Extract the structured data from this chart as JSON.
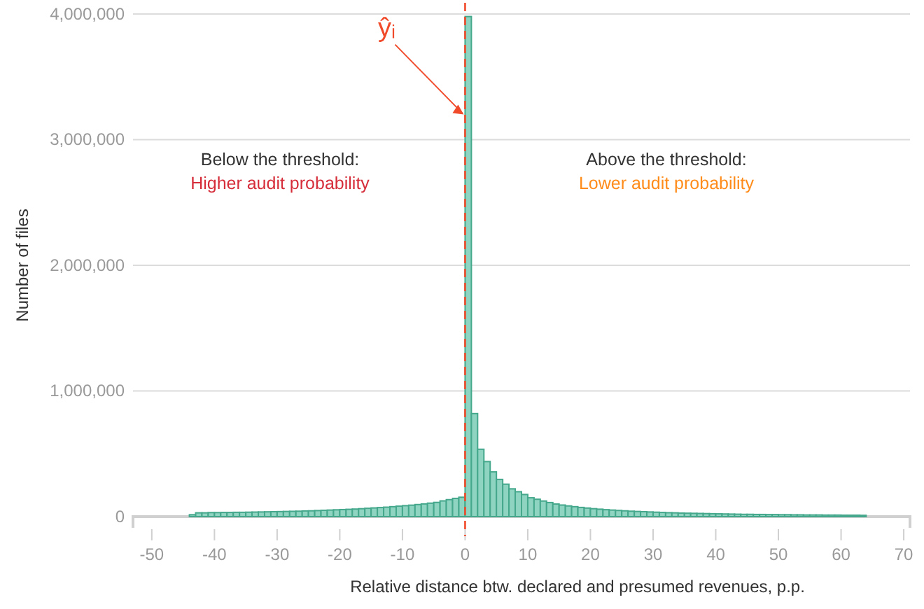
{
  "chart_data": {
    "type": "histogram",
    "xlabel": "Relative distance btw. declared and presumed revenues, p.p.",
    "ylabel": "Number of files",
    "color": "#8fd3c1",
    "bins": [
      -44,
      -43,
      -42,
      -41,
      -40,
      -39,
      -38,
      -37,
      -36,
      -35,
      -34,
      -33,
      -32,
      -31,
      -30,
      -29,
      -28,
      -27,
      -26,
      -25,
      -24,
      -23,
      -22,
      -21,
      -20,
      -19,
      -18,
      -17,
      -16,
      -15,
      -14,
      -13,
      -12,
      -11,
      -10,
      -9,
      -8,
      -7,
      -6,
      -5,
      -4,
      -3,
      -2,
      -1,
      0,
      1,
      2,
      3,
      4,
      5,
      6,
      7,
      8,
      9,
      10,
      11,
      12,
      13,
      14,
      15,
      16,
      17,
      18,
      19,
      20,
      21,
      22,
      23,
      24,
      25,
      26,
      27,
      28,
      29,
      30,
      31,
      32,
      33,
      34,
      35,
      36,
      37,
      38,
      39,
      40,
      41,
      42,
      43,
      44,
      45,
      46,
      47,
      48,
      49,
      50,
      51,
      52,
      53,
      54,
      55,
      56,
      57,
      58,
      59,
      60,
      61,
      62,
      63,
      64
    ],
    "values": [
      15000,
      30000,
      30000,
      32000,
      32000,
      33000,
      33000,
      34000,
      34000,
      35000,
      36000,
      37000,
      38000,
      39000,
      40000,
      41000,
      42000,
      43000,
      45000,
      46000,
      48000,
      50000,
      52000,
      54000,
      56000,
      58000,
      60000,
      63000,
      66000,
      69000,
      72000,
      75000,
      79000,
      83000,
      87000,
      91000,
      96000,
      101000,
      107000,
      113000,
      125000,
      135000,
      145000,
      154000,
      3980000,
      820000,
      536000,
      438000,
      356000,
      296000,
      258000,
      221000,
      198000,
      176000,
      150000,
      138000,
      124000,
      112000,
      100000,
      92000,
      85000,
      79000,
      73000,
      68000,
      63000,
      59000,
      55000,
      52000,
      49000,
      46000,
      43000,
      41000,
      39000,
      37000,
      35000,
      33000,
      31000,
      30000,
      28000,
      27000,
      26000,
      25000,
      24000,
      23000,
      22000,
      21000,
      20000,
      19000,
      18000,
      18000,
      17000,
      17000,
      16000,
      16000,
      15000,
      15000,
      14000,
      14000,
      13000,
      13000,
      13000,
      12000,
      12000,
      12000,
      11000,
      11000,
      11000,
      10000
    ],
    "xlim": [
      -53,
      71
    ],
    "xticks": [
      -50,
      -40,
      -30,
      -20,
      -10,
      0,
      10,
      20,
      30,
      40,
      50,
      60,
      70
    ],
    "ylim": [
      0,
      4000000
    ],
    "yticks": [
      0,
      {
        "value": 1000000,
        "label": "1,000,000"
      },
      {
        "value": 2000000,
        "label": "2,000,000"
      },
      {
        "value": 3000000,
        "label": "3,000,000"
      },
      {
        "value": 4000000,
        "label": "4,000,000"
      }
    ],
    "grid": "y",
    "ref_lines": [
      {
        "axis": "x",
        "value": 0,
        "label": null,
        "color": "#f04a2a",
        "line_style": "dashed"
      }
    ],
    "annotations": [
      {
        "text": "ŷᵢ",
        "x": 0,
        "y": 3200000
      },
      "Below the threshold:",
      "Higher audit probability",
      "Above the threshold:",
      "Lower audit probability"
    ]
  }
}
